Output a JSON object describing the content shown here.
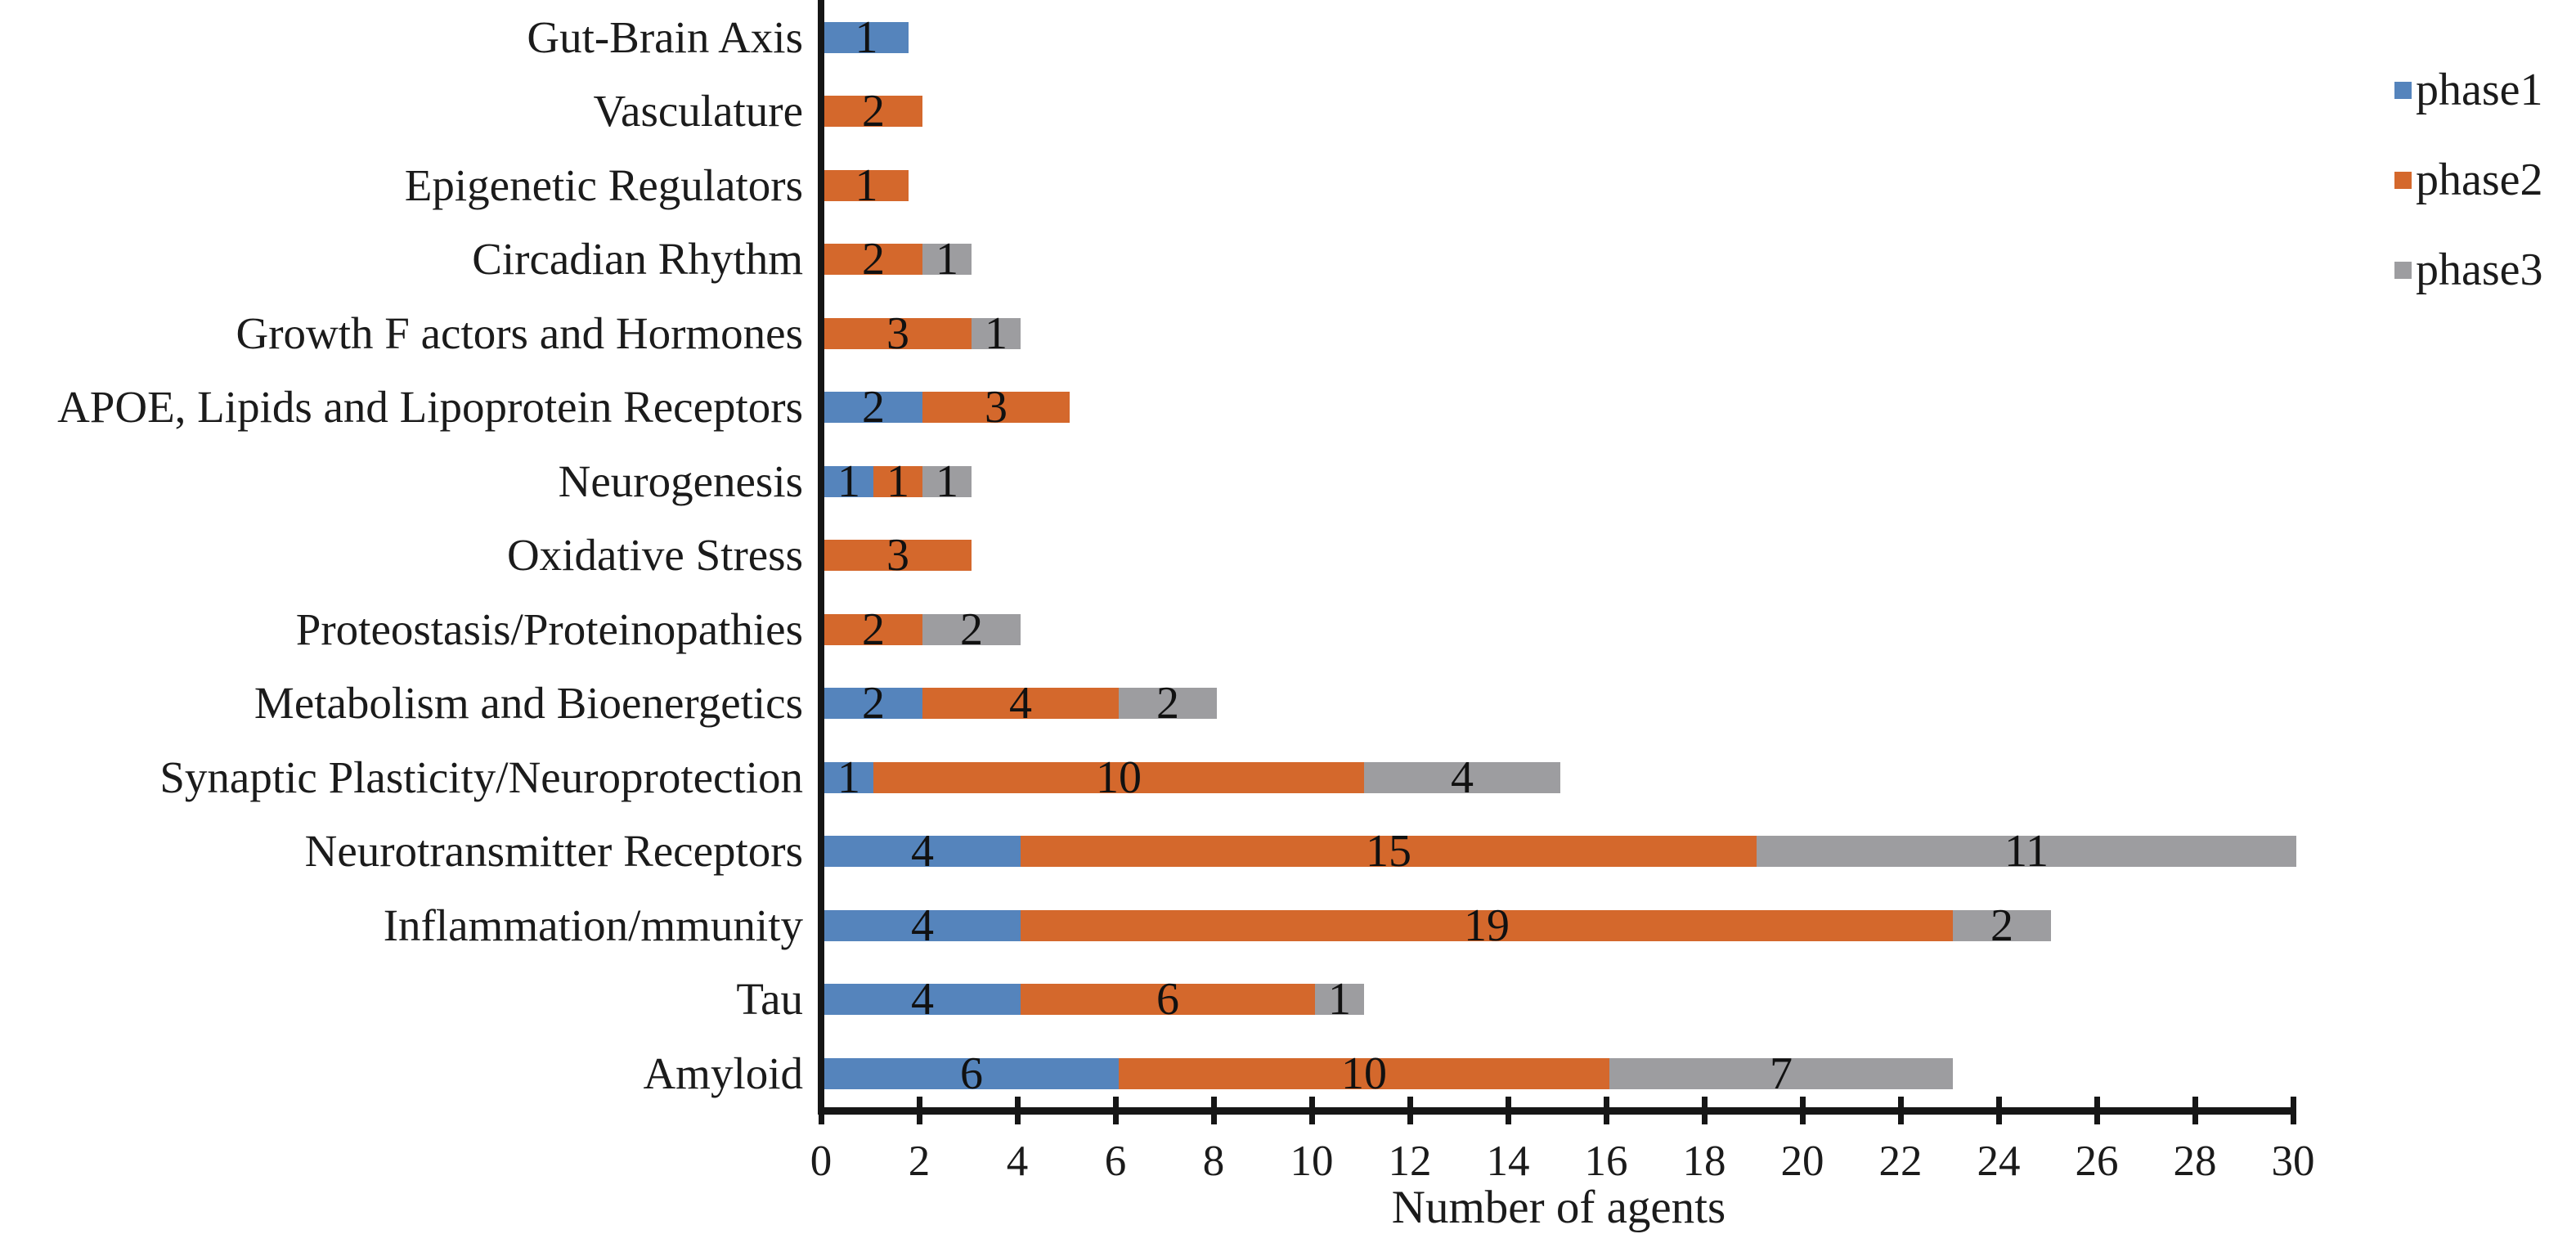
{
  "chart_data": {
    "type": "bar",
    "orientation": "horizontal",
    "stacked": true,
    "title": "",
    "xlabel": "Number of agents",
    "ylabel": "",
    "xlim": [
      0,
      30
    ],
    "x_ticks": [
      "0",
      "2",
      "4",
      "6",
      "8",
      "10",
      "12",
      "14",
      "16",
      "18",
      "20",
      "22",
      "24",
      "26",
      "28",
      "30"
    ],
    "grid": false,
    "legend_position": "top-right",
    "categories": [
      "Gut-Brain Axis",
      "Vasculature",
      "Epigenetic Regulators",
      "Circadian Rhythm",
      "Growth F actors and Hormones",
      "APOE, Lipids and Lipoprotein Receptors",
      "Neurogenesis",
      "Oxidative Stress",
      "Proteostasis/Proteinopathies",
      "Metabolism and Bioenergetics",
      "Synaptic Plasticity/Neuroprotection",
      "Neurotransmitter Receptors",
      "Inflammation/mmunity",
      "Tau",
      "Amyloid"
    ],
    "series": [
      {
        "name": "phase1",
        "color": "#5584BC",
        "values": [
          1,
          0,
          0,
          0,
          0,
          2,
          1,
          0,
          0,
          2,
          1,
          4,
          4,
          4,
          6
        ]
      },
      {
        "name": "phase2",
        "color": "#D4682C",
        "values": [
          0,
          2,
          1,
          2,
          3,
          3,
          1,
          3,
          2,
          4,
          10,
          15,
          19,
          6,
          10
        ]
      },
      {
        "name": "phase3",
        "color": "#9D9DA0",
        "values": [
          0,
          0,
          0,
          1,
          1,
          0,
          1,
          0,
          2,
          2,
          4,
          11,
          2,
          1,
          7
        ]
      }
    ]
  },
  "legend": {
    "items": [
      {
        "label": "phase1",
        "color": "#5584BC"
      },
      {
        "label": "phase2",
        "color": "#D4682C"
      },
      {
        "label": "phase3",
        "color": "#9D9DA0"
      }
    ]
  }
}
